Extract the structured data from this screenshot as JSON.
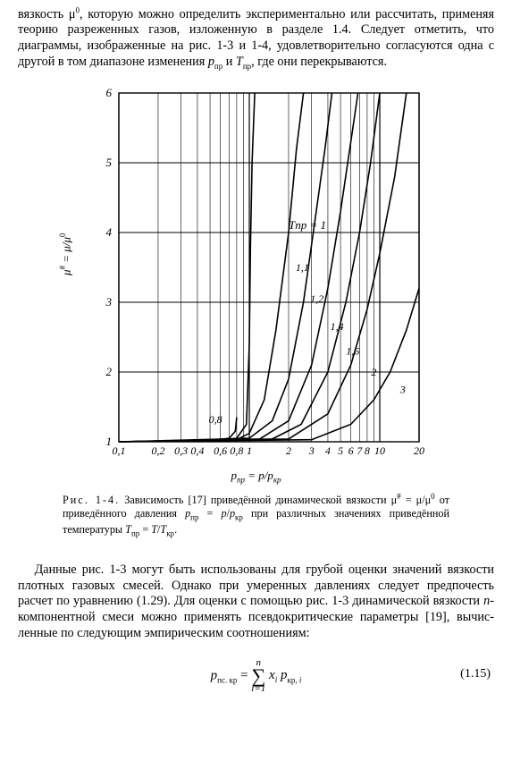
{
  "para_top": "вязкость μ⁰, которую можно определить экспериментально или рассчитать, применяя теорию разреженных газов, изложенную в разделе 1.4. Следует отметить, что диаграммы, изображенные на рис. 1-3 и 1-4, удовлетворительно согласуются одна с другой в том диапазоне изменения pпр и Tпр, где они перекрываются.",
  "chart": {
    "type": "line",
    "xscale": "log",
    "xlim": [
      0.1,
      20
    ],
    "yscale": "linear",
    "ylim": [
      1,
      6
    ],
    "xticks": [
      0.1,
      0.2,
      0.3,
      0.4,
      0.6,
      0.8,
      1,
      2,
      3,
      4,
      5,
      6,
      7,
      8,
      9,
      10,
      20
    ],
    "xtick_labels": [
      "0,1",
      "0,2",
      "0,3",
      "0,4",
      "0,6",
      "0,8",
      "1",
      "2",
      "3",
      "4",
      "5",
      "6",
      "7",
      "8",
      "",
      "10",
      "20"
    ],
    "yticks": [
      1,
      2,
      3,
      4,
      5,
      6
    ],
    "ytick_labels": [
      "1",
      "2",
      "3",
      "4",
      "5",
      "6"
    ],
    "y_axis_label": "μ# = μ/μ⁰",
    "x_axis_label": "pпр = p/pкр",
    "grid_color": "#000000",
    "curve_color": "#000000",
    "curve_stroke": 1.6,
    "background": "#ffffff",
    "series_label_header": "Tпр = 1",
    "series": [
      {
        "T": "0,8",
        "pts": [
          [
            0.1,
            1
          ],
          [
            0.5,
            1.02
          ],
          [
            0.7,
            1.05
          ],
          [
            0.78,
            1.15
          ],
          [
            0.8,
            1.35
          ]
        ]
      },
      {
        "T": "1",
        "pts": [
          [
            0.1,
            1
          ],
          [
            0.6,
            1.02
          ],
          [
            0.8,
            1.05
          ],
          [
            0.95,
            1.25
          ],
          [
            1.0,
            2.4
          ],
          [
            1.02,
            3.8
          ],
          [
            1.05,
            5.0
          ],
          [
            1.1,
            6
          ]
        ]
      },
      {
        "T": "1,1",
        "pts": [
          [
            0.1,
            1
          ],
          [
            0.8,
            1.03
          ],
          [
            1.0,
            1.12
          ],
          [
            1.3,
            1.6
          ],
          [
            1.6,
            2.6
          ],
          [
            2.0,
            4.0
          ],
          [
            2.3,
            5.2
          ],
          [
            2.6,
            6
          ]
        ]
      },
      {
        "T": "1,2",
        "pts": [
          [
            0.1,
            1
          ],
          [
            1.0,
            1.05
          ],
          [
            1.5,
            1.3
          ],
          [
            2.0,
            1.9
          ],
          [
            2.6,
            3.0
          ],
          [
            3.2,
            4.2
          ],
          [
            3.8,
            5.2
          ],
          [
            4.3,
            6
          ]
        ]
      },
      {
        "T": "1,4",
        "pts": [
          [
            0.1,
            1
          ],
          [
            1.2,
            1.04
          ],
          [
            2.0,
            1.3
          ],
          [
            3.0,
            2.1
          ],
          [
            4.0,
            3.2
          ],
          [
            5.0,
            4.3
          ],
          [
            6.0,
            5.3
          ],
          [
            6.8,
            6
          ]
        ]
      },
      {
        "T": "1,6",
        "pts": [
          [
            0.1,
            1
          ],
          [
            1.5,
            1.04
          ],
          [
            2.5,
            1.25
          ],
          [
            4.0,
            2.0
          ],
          [
            5.5,
            3.0
          ],
          [
            7.0,
            4.0
          ],
          [
            8.5,
            5.0
          ],
          [
            10,
            6
          ]
        ]
      },
      {
        "T": "2",
        "pts": [
          [
            0.1,
            1
          ],
          [
            2.0,
            1.04
          ],
          [
            4.0,
            1.4
          ],
          [
            6.0,
            2.1
          ],
          [
            8.0,
            2.9
          ],
          [
            10,
            3.7
          ],
          [
            13,
            4.8
          ],
          [
            16,
            6
          ]
        ]
      },
      {
        "T": "3",
        "pts": [
          [
            0.1,
            1
          ],
          [
            3.0,
            1.03
          ],
          [
            6.0,
            1.25
          ],
          [
            9.0,
            1.6
          ],
          [
            12,
            2.0
          ],
          [
            16,
            2.6
          ],
          [
            20,
            3.2
          ]
        ]
      }
    ],
    "curve_label_positions": [
      {
        "T": "0,8",
        "x": 0.55,
        "y": 1.27
      },
      {
        "T": "1",
        "header": true,
        "x": 2.0,
        "y": 4.05
      },
      {
        "T": "1,1",
        "x": 2.55,
        "y": 3.45
      },
      {
        "T": "1,2",
        "x": 3.3,
        "y": 3.0
      },
      {
        "T": "1,4",
        "x": 4.7,
        "y": 2.6
      },
      {
        "T": "1,6",
        "x": 6.2,
        "y": 2.25
      },
      {
        "T": "2",
        "x": 9.0,
        "y": 1.95
      },
      {
        "T": "3",
        "x": 15.0,
        "y": 1.7
      }
    ]
  },
  "caption": {
    "lead": "Рис. 1-4.",
    "text": "Зависимость [17] приведённой динамической вязкости μ# = μ/μ⁰ от приведённого давления pпр = p/pкр при различных значениях приведённой температуры Tпр = T/Tкр."
  },
  "para_bottom": "Данные рис. 1-3 могут быть использованы для грубой оценки значений вязкости плотных газовых смесей. Однако при умеренных давлениях следует предпочесть расчет по уравнению (1.29). Для оценки с помощью рис. 1-3 динамической вязкости n-компонентной смеси можно применять псевдокритические параметры [19], вычисленные по следующим эмпирическим соотношениям:",
  "equation": {
    "lhs": "pпс. кр",
    "eq": "=",
    "sum_top": "n",
    "sum_bottom": "i=1",
    "rhs": "xᵢ pкр, i",
    "number": "(1.15)"
  }
}
